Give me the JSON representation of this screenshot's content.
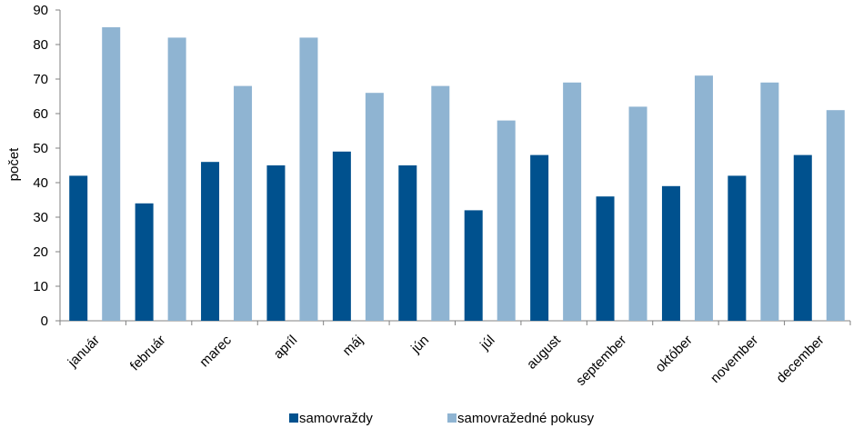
{
  "chart_data": {
    "type": "bar",
    "title": "",
    "xlabel": "",
    "ylabel": "počet",
    "ylim": [
      0,
      90
    ],
    "yticks": [
      0,
      10,
      20,
      30,
      40,
      50,
      60,
      70,
      80,
      90
    ],
    "grid": false,
    "legend_position": "bottom",
    "categories": [
      "január",
      "február",
      "marec",
      "apríl",
      "máj",
      "jún",
      "júl",
      "august",
      "september",
      "október",
      "november",
      "december"
    ],
    "series": [
      {
        "name": "samovraždy",
        "color": "#00518E",
        "values": [
          42,
          34,
          46,
          45,
          49,
          45,
          32,
          48,
          36,
          39,
          42,
          48
        ]
      },
      {
        "name": "samovražedné pokusy",
        "color": "#8FB4D2",
        "values": [
          85,
          82,
          68,
          82,
          66,
          68,
          58,
          69,
          62,
          71,
          69,
          61
        ]
      }
    ]
  }
}
